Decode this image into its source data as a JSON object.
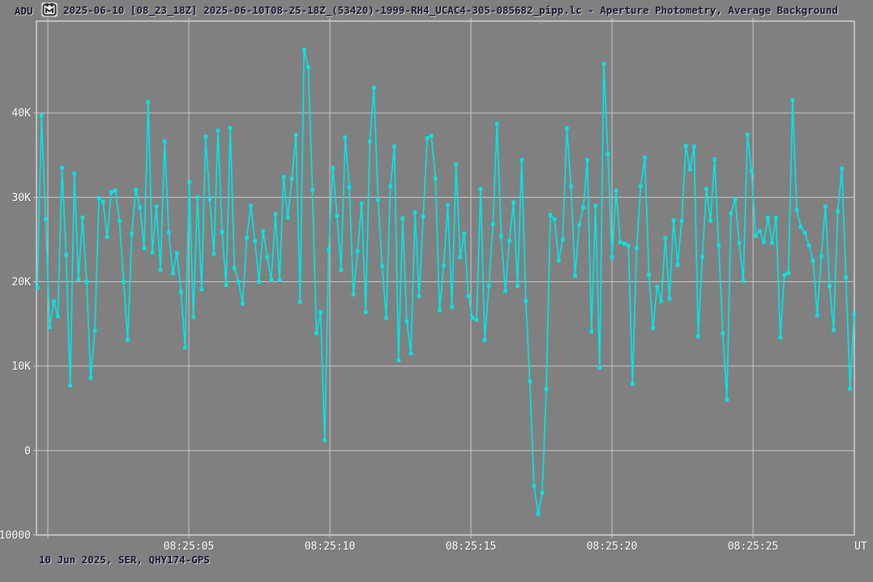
{
  "window": {
    "y_axis_corner_label": "ADU",
    "icon": "lightcurve-file-icon",
    "title": "2025-06-10 [08_23_18Z] 2025-06-10T08-25-18Z_(53420)-1999-RH4_UCAC4-305-085682_pipp.lc - Aperture Photometry, Average Background"
  },
  "footer": {
    "text": "10 Jun 2025, SER, QHY174-GPS"
  },
  "colors": {
    "background": "#808080",
    "grid": "#c9c9c9",
    "plot_border": "#cdcdcd",
    "axis_text": "#ffffff",
    "title_text": "#14142e",
    "data_series": "#00e6e6"
  },
  "chart_data": {
    "type": "line",
    "title": "Aperture Photometry, Average Background",
    "ylabel": "ADU",
    "xlabel": "UT",
    "x_axis_unit_label": "UT",
    "grid": "on",
    "x_tick_labels": [
      "08:25:05",
      "08:25:10",
      "08:25:15",
      "08:25:20",
      "08:25:25"
    ],
    "x_tick_seconds": [
      5,
      10,
      15,
      20,
      25
    ],
    "x_gridline_seconds": [
      0,
      5,
      10,
      15,
      20,
      25
    ],
    "y_ticks": [
      {
        "value": 40000,
        "label": "40K"
      },
      {
        "value": 30000,
        "label": "30K"
      },
      {
        "value": 20000,
        "label": "20K"
      },
      {
        "value": 10000,
        "label": "10K"
      },
      {
        "value": 0,
        "label": "0"
      },
      {
        "value": -10000,
        "label": "-10000"
      }
    ],
    "ylim": [
      -10000,
      50870
    ],
    "start_offset_sec": -0.37,
    "sample_interval_sec": 0.1455,
    "marker": "square",
    "values": [
      19300,
      39700,
      27400,
      14600,
      17700,
      15900,
      33500,
      23200,
      7700,
      32800,
      20300,
      27600,
      20000,
      8600,
      14200,
      29900,
      29500,
      25300,
      30600,
      30800,
      27200,
      20000,
      13100,
      25700,
      30900,
      28800,
      24000,
      41300,
      23500,
      28900,
      21400,
      36600,
      25800,
      21000,
      23400,
      18800,
      12200,
      31800,
      15800,
      30000,
      19100,
      37200,
      29800,
      23300,
      37900,
      25900,
      19600,
      38200,
      21600,
      20000,
      17400,
      25200,
      29000,
      24800,
      20000,
      26000,
      22900,
      20200,
      28000,
      20200,
      32400,
      27600,
      32200,
      37400,
      17600,
      47500,
      45400,
      30900,
      13900,
      16400,
      1200,
      23800,
      33500,
      27800,
      21400,
      37100,
      31200,
      18500,
      23600,
      29300,
      16400,
      36600,
      43000,
      29700,
      21900,
      15700,
      31300,
      36000,
      10700,
      27500,
      15300,
      11500,
      28200,
      18300,
      27700,
      37000,
      37300,
      32200,
      16600,
      21900,
      29100,
      17000,
      33900,
      22900,
      25700,
      18300,
      15700,
      15500,
      31000,
      13100,
      19500,
      26800,
      38700,
      25400,
      18900,
      24800,
      29400,
      19500,
      34400,
      17700,
      8200,
      -4200,
      -7500,
      -5000,
      7300,
      27900,
      27400,
      22500,
      25000,
      38200,
      31300,
      20700,
      26700,
      28800,
      34400,
      14100,
      29000,
      9800,
      45800,
      35100,
      22900,
      30800,
      24700,
      24500,
      24300,
      7900,
      24000,
      31300,
      34700,
      20800,
      14500,
      19400,
      17700,
      25200,
      18000,
      27300,
      22000,
      27200,
      36100,
      33300,
      36000,
      13500,
      22900,
      31000,
      27200,
      34500,
      24300,
      13900,
      6000,
      28100,
      29800,
      24600,
      20100,
      37400,
      33100,
      25400,
      26000,
      24700,
      27600,
      24600,
      27600,
      13400,
      20800,
      21000,
      41500,
      28500,
      26500,
      25800,
      24300,
      22500,
      16000,
      23000,
      28900,
      19500,
      14300,
      28300,
      33400,
      20500,
      7300,
      16100
    ]
  }
}
